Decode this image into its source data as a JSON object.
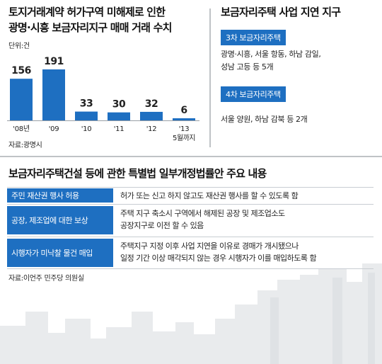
{
  "left_panel": {
    "title_line1": "토지거래계약 허가구역 미해제로 인한",
    "title_line2": "광명·시흥 보금자리지구 매매 거래 수치",
    "unit": "단위:건",
    "source": "자료:광명시"
  },
  "chart_data": {
    "type": "bar",
    "categories": [
      "'08년",
      "'09",
      "'10",
      "'11",
      "'12",
      "'13"
    ],
    "category_sublabels": [
      "",
      "",
      "",
      "",
      "",
      "5월까지"
    ],
    "values": [
      156,
      191,
      33,
      30,
      32,
      6
    ],
    "value_labels": [
      "156",
      "191",
      "33",
      "30",
      "32",
      "6"
    ],
    "title": "토지거래계약 허가구역 미해제로 인한 광명·시흥 보금자리지구 매매 거래 수치",
    "ylabel": "단위:건",
    "ylim": [
      0,
      191
    ],
    "grid": false,
    "colors": {
      "bar": "#1e6fc1"
    }
  },
  "right_panel": {
    "title": "보금자리주택 사업 지연 지구",
    "groups": [
      {
        "tag": "3차 보금자리주택",
        "line1": "광명·시흥, 서울 항동, 하남 감일,",
        "line2": "성남 고등 등 5개"
      },
      {
        "tag": "4차 보금자리주택",
        "line1": "서울 양원, 하남 감북 등 2개",
        "line2": ""
      }
    ]
  },
  "bottom_panel": {
    "title": "보금자리주택건설 등에 관한 특별법 일부개정법률안 주요 내용",
    "rows": [
      {
        "label": "주민 재산권 행사 허용",
        "line1": "허가 또는 신고 하지 않고도 재산권 행사를 할 수 있도록 함",
        "line2": ""
      },
      {
        "label": "공장, 제조업에 대한 보상",
        "line1": "주택 지구 축소시 구역에서 해제된 공장 및 제조업소도",
        "line2": "공장지구로 이전 할 수 있음"
      },
      {
        "label": "시행자가 미낙찰 물건 매입",
        "line1": "주택지구 지정 이후 사업 지연을 이유로 경매가 개시됐으나",
        "line2": "일정 기간 이상 매각되지 않는 경우 시행자가 이를 매입하도록 함"
      }
    ],
    "source": "자료:이언주 민주당 의원실"
  },
  "colors": {
    "accent": "#1e6fc1",
    "skyline": "#e6e8ea",
    "divider": "#bfc3c6"
  }
}
